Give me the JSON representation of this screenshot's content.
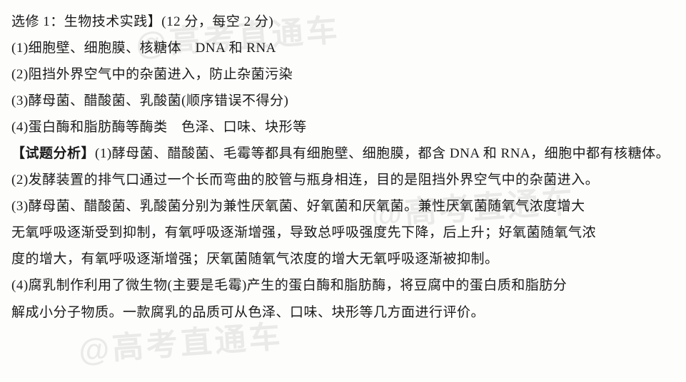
{
  "header": "选修 1：生物技术实践】(12 分，每空 2 分)",
  "answers": {
    "a1": "(1)细胞壁、细胞膜、核糖体　DNA 和 RNA",
    "a2": "(2)阻挡外界空气中的杂菌进入，防止杂菌污染",
    "a3": "(3)酵母菌、醋酸菌、乳酸菌(顺序错误不得分)",
    "a4": "(4)蛋白酶和脂肪酶等酶类　色泽、口味、块形等"
  },
  "analysis": {
    "label": "【试题分析】",
    "p1a": "(1)酵母菌、醋酸菌、毛霉等都具有细胞壁、细胞膜，都含 DNA 和 RNA，细胞中都有核糖体。",
    "p2": "(2)发酵装置的排气口通过一个长而弯曲的胶管与瓶身相连，目的是阻挡外界空气中的杂菌进入。",
    "p3a": "(3)酵母菌、醋酸菌、乳酸菌分别为兼性厌氧菌、好氧菌和厌氧菌。兼性厌氧菌随氧气浓度增大",
    "p3b": "无氧呼吸逐渐受到抑制，有氧呼吸逐渐增强，导致总呼吸强度先下降，后上升；好氧菌随氧气浓",
    "p3c": "度的增大，有氧呼吸逐渐增强；厌氧菌随氧气浓度的增大无氧呼吸逐渐被抑制。",
    "p4a": "(4)腐乳制作利用了微生物(主要是毛霉)产生的蛋白酶和脂肪酶，将豆腐中的蛋白质和脂肪分",
    "p4b": "解成小分子物质。一款腐乳的品质可从色泽、口味、块形等几方面进行评价。"
  },
  "watermark_text": "@高考直通车"
}
